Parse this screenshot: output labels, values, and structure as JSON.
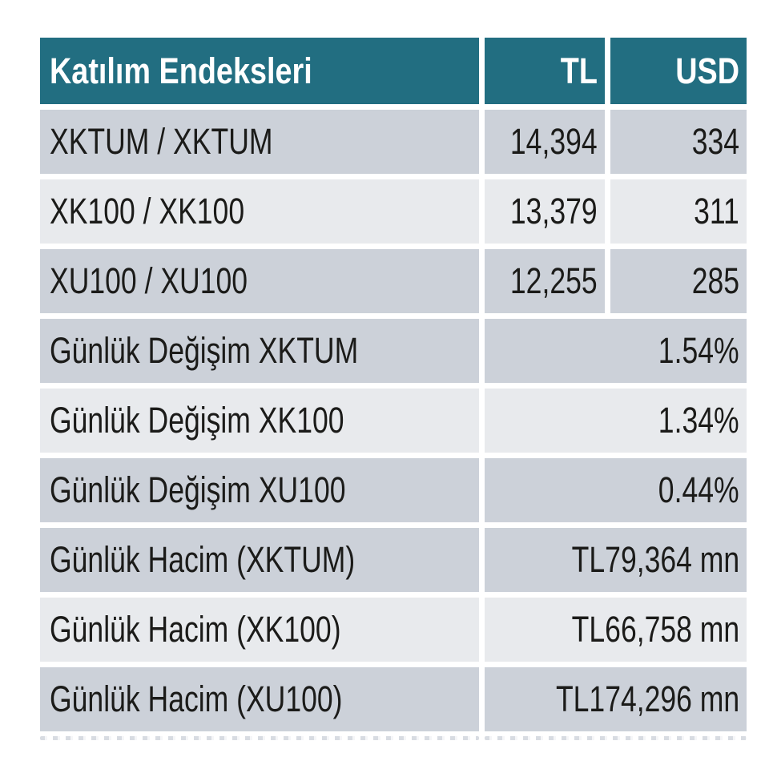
{
  "colors": {
    "header_bg": "#226e81",
    "header_text": "#ffffff",
    "row_dark": "#ccd1d9",
    "row_light": "#e8eaed",
    "text": "#1b1b19"
  },
  "table": {
    "header": {
      "title": "Katılım Endeksleri",
      "col_tl": "TL",
      "col_usd": "USD"
    },
    "rows": [
      {
        "label": "XKTUM / XKTUM",
        "tl": "14,394",
        "usd": "334"
      },
      {
        "label": "XK100 / XK100",
        "tl": "13,379",
        "usd": "311"
      },
      {
        "label": "XU100 / XU100",
        "tl": "12,255",
        "usd": "285"
      },
      {
        "label": "Günlük Değişim XKTUM",
        "value": "1.54%"
      },
      {
        "label": "Günlük Değişim XK100",
        "value": "1.34%"
      },
      {
        "label": "Günlük Değişim XU100",
        "value": "0.44%"
      },
      {
        "label": "Günlük Hacim (XKTUM)",
        "value": "TL79,364 mn"
      },
      {
        "label": "Günlük Hacim (XK100)",
        "value": "TL66,758 mn"
      },
      {
        "label": "Günlük Hacim (XU100)",
        "value": "TL174,296 mn"
      }
    ]
  }
}
